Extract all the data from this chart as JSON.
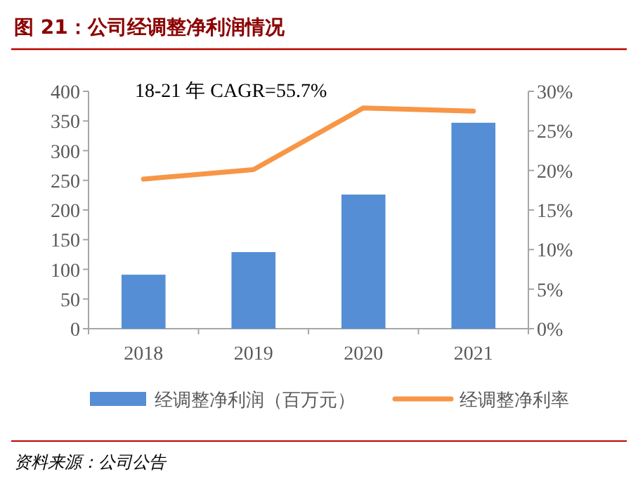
{
  "chart_data": {
    "type": "bar",
    "title": "图 21：公司经调整净利润情况",
    "categories": [
      "2018",
      "2019",
      "2020",
      "2021"
    ],
    "series": [
      {
        "name": "经调整净利润（百万元）",
        "color": "#558ed5",
        "values": [
          91,
          129,
          226,
          347
        ]
      },
      {
        "name": "经调整净利率",
        "type": "line",
        "axis": "y2",
        "color": "#f79646",
        "values": [
          18.9,
          20.1,
          27.9,
          27.5
        ]
      }
    ],
    "ylim": [
      0,
      400
    ],
    "yticks": [
      0,
      50,
      100,
      150,
      200,
      250,
      300,
      350,
      400
    ],
    "y2lim": [
      0,
      30
    ],
    "y2ticks": [
      {
        "value": 0,
        "label": "0%"
      },
      {
        "value": 5,
        "label": "5%"
      },
      {
        "value": 10,
        "label": "10%"
      },
      {
        "value": 15,
        "label": "15%"
      },
      {
        "value": 20,
        "label": "20%"
      },
      {
        "value": 25,
        "label": "25%"
      },
      {
        "value": 30,
        "label": "30%"
      }
    ],
    "annotations": [
      "18-21 年 CAGR=55.7%",
      "资料来源：公司公告"
    ],
    "grid": false,
    "legend": "bottom",
    "marker": "none",
    "line_style": "solid"
  }
}
